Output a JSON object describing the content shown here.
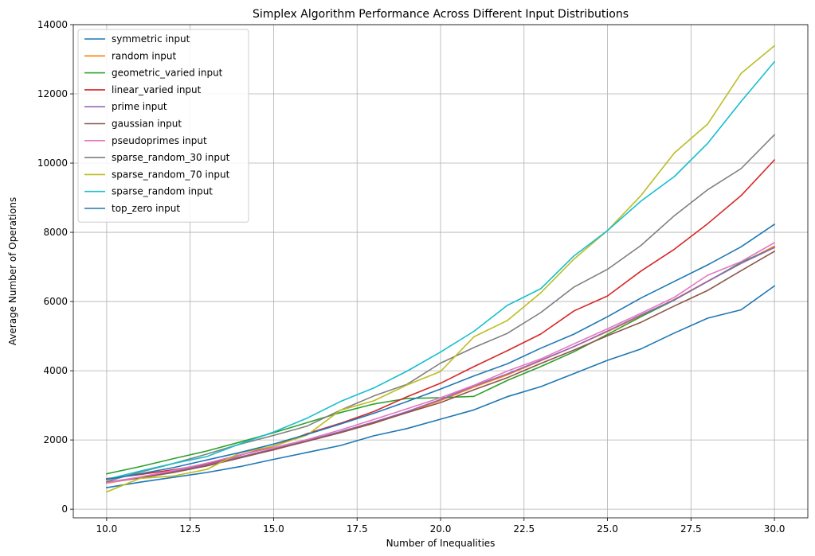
{
  "chart_data": {
    "type": "line",
    "title": "Simplex Algorithm Performance Across Different Input Distributions",
    "xlabel": "Number of Inequalities",
    "ylabel": "Average Number of Operations",
    "xlim": [
      9.0,
      31.0
    ],
    "ylim": [
      -250,
      14000
    ],
    "xticks": [
      "10.0",
      "12.5",
      "15.0",
      "17.5",
      "20.0",
      "22.5",
      "25.0",
      "27.5",
      "30.0"
    ],
    "yticks": [
      "0",
      "2000",
      "4000",
      "6000",
      "8000",
      "10000",
      "12000",
      "14000"
    ],
    "grid": true,
    "legend_position": "top-left",
    "x": [
      10,
      11,
      12,
      13,
      14,
      15,
      16,
      17,
      18,
      19,
      20,
      21,
      22,
      23,
      24,
      25,
      26,
      27,
      28,
      29,
      30
    ],
    "series": [
      {
        "name": "symmetric input",
        "color": "#1f77b4",
        "values": [
          620,
          780,
          920,
          1060,
          1230,
          1440,
          1640,
          1840,
          2120,
          2330,
          2600,
          2870,
          3250,
          3540,
          3920,
          4300,
          4630,
          5090,
          5520,
          5760,
          6450
        ]
      },
      {
        "name": "random input",
        "color": "#ff7f0e",
        "values": [
          750,
          910,
          1060,
          1250,
          1500,
          1710,
          1980,
          2210,
          2480,
          2800,
          3140,
          3530,
          3880,
          4290,
          4700,
          5130,
          5590,
          6060,
          6590,
          7100,
          7600
        ]
      },
      {
        "name": "geometric_varied input",
        "color": "#2ca02c",
        "values": [
          1020,
          1230,
          1460,
          1680,
          1940,
          2210,
          2500,
          2790,
          3040,
          3200,
          3220,
          3260,
          3720,
          4120,
          4550,
          5050,
          5560,
          6040,
          6580,
          7130,
          7560
        ]
      },
      {
        "name": "linear_varied input",
        "color": "#d62728",
        "values": [
          880,
          1000,
          1140,
          1300,
          1560,
          1820,
          2180,
          2480,
          2820,
          3250,
          3640,
          4120,
          4580,
          5060,
          5730,
          6160,
          6880,
          7510,
          8250,
          9060,
          10090
        ]
      },
      {
        "name": "prime input",
        "color": "#9467bd",
        "values": [
          780,
          920,
          1090,
          1280,
          1510,
          1740,
          1980,
          2240,
          2520,
          2820,
          3170,
          3560,
          3910,
          4300,
          4700,
          5150,
          5610,
          6050,
          6580,
          7100,
          7560
        ]
      },
      {
        "name": "gaussian input",
        "color": "#8c564b",
        "values": [
          770,
          900,
          1060,
          1250,
          1480,
          1720,
          1960,
          2210,
          2490,
          2790,
          3080,
          3450,
          3800,
          4210,
          4600,
          5010,
          5400,
          5870,
          6320,
          6890,
          7450
        ]
      },
      {
        "name": "pseudoprimes input",
        "color": "#e377c2",
        "values": [
          760,
          930,
          1120,
          1330,
          1570,
          1780,
          2010,
          2290,
          2590,
          2900,
          3220,
          3580,
          3990,
          4340,
          4780,
          5210,
          5660,
          6120,
          6760,
          7150,
          7700
        ]
      },
      {
        "name": "sparse_random_30 input",
        "color": "#7f7f7f",
        "values": [
          800,
          1070,
          1320,
          1590,
          1880,
          2130,
          2400,
          2860,
          3270,
          3610,
          4220,
          4670,
          5080,
          5680,
          6420,
          6930,
          7620,
          8480,
          9230,
          9840,
          10820
        ]
      },
      {
        "name": "sparse_random_70 input",
        "color": "#bcbd22",
        "values": [
          500,
          890,
          960,
          1150,
          1630,
          1820,
          2140,
          2860,
          3130,
          3590,
          3980,
          4980,
          5450,
          6250,
          7230,
          8050,
          9060,
          10290,
          11130,
          12590,
          13390
        ]
      },
      {
        "name": "sparse_random input",
        "color": "#17becf",
        "values": [
          860,
          1100,
          1320,
          1520,
          1890,
          2230,
          2630,
          3110,
          3500,
          3990,
          4540,
          5140,
          5890,
          6370,
          7320,
          8050,
          8900,
          9610,
          10570,
          11780,
          12930
        ]
      },
      {
        "name": "top_zero input",
        "color": "#1f77b4",
        "values": [
          860,
          1020,
          1200,
          1420,
          1640,
          1880,
          2160,
          2460,
          2770,
          3110,
          3470,
          3850,
          4200,
          4650,
          5060,
          5560,
          6100,
          6580,
          7060,
          7580,
          8230
        ]
      }
    ]
  }
}
